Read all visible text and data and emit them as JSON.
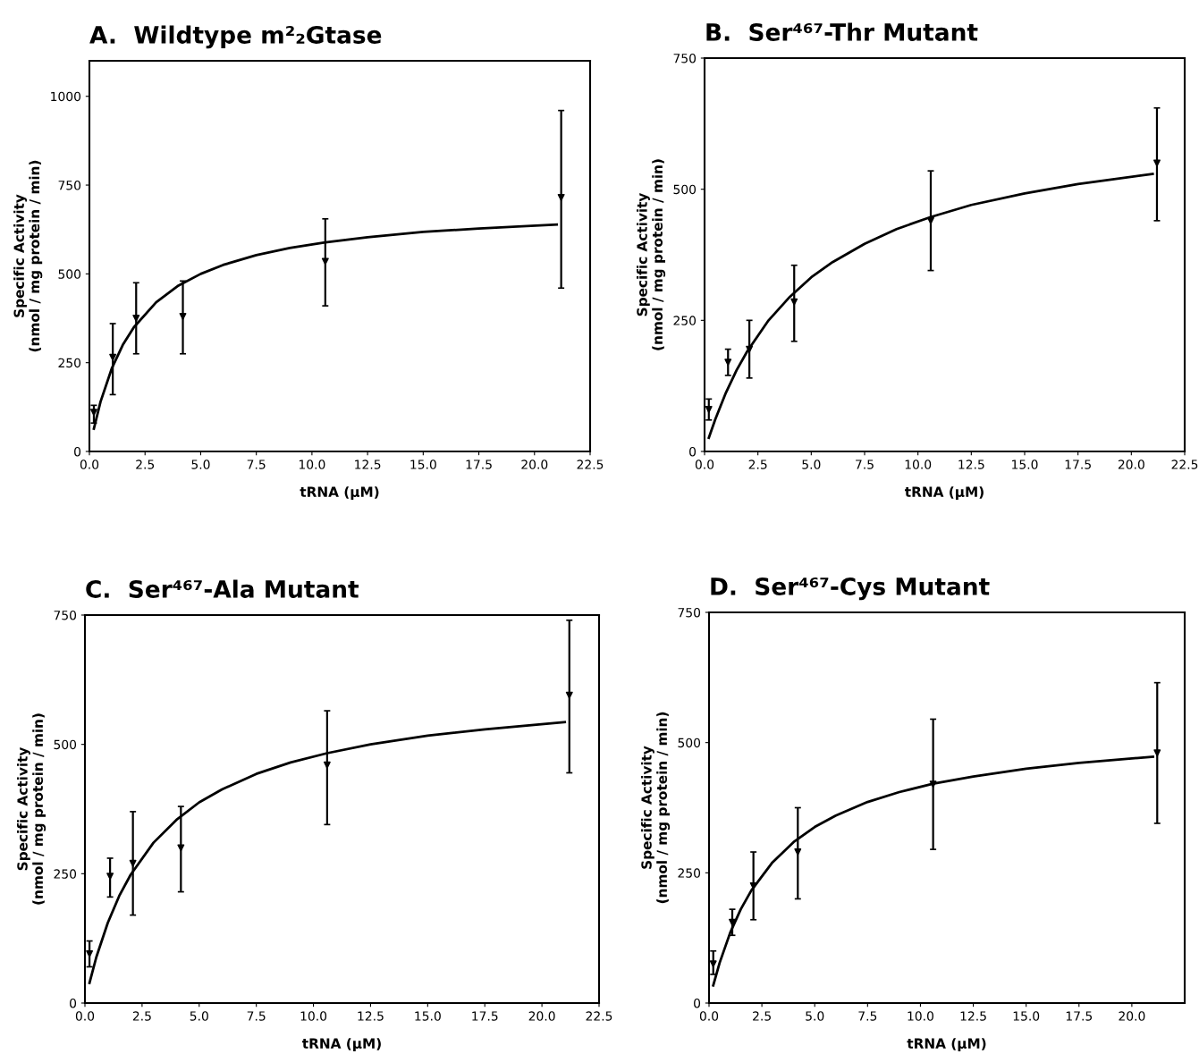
{
  "chart_data": [
    {
      "type": "scatter",
      "title": "A.  Wildtype m²₂Gtase",
      "xlabel": "tRNA (μM)",
      "ylabel": "Specific Activity\n(nmol / mg protein / min)",
      "xlim": [
        0,
        22.5
      ],
      "ylim": [
        0,
        1100
      ],
      "xticks": [
        {
          "value": 0,
          "label": "0.0"
        },
        2.5,
        {
          "value": 5,
          "label": "5.0"
        },
        7.5,
        {
          "value": 10,
          "label": "10.0"
        },
        12.5,
        {
          "value": 15,
          "label": "15.0"
        },
        17.5,
        {
          "value": 20,
          "label": "20.0"
        },
        22.5
      ],
      "yticks": [
        0,
        250,
        500,
        750,
        1000
      ],
      "grid": false,
      "legend": false,
      "series": [
        {
          "color": "#000000",
          "marker": "triangle",
          "x": [
            0.2,
            1.05,
            2.1,
            4.2,
            10.6,
            21.2
          ],
          "values": [
            110,
            265,
            375,
            380,
            535,
            715
          ],
          "errors": [
            [
              80,
              130
            ],
            [
              160,
              360
            ],
            [
              275,
              475
            ],
            [
              275,
              480
            ],
            [
              410,
              655
            ],
            [
              460,
              960
            ]
          ]
        },
        {
          "type": "line",
          "color": "#000000",
          "marker": "none",
          "line_style": "solid",
          "x": [
            0.2,
            0.5,
            1,
            1.5,
            2,
            3,
            4,
            5,
            6,
            7.5,
            9,
            10.6,
            12.5,
            15,
            17.5,
            21
          ],
          "values": [
            64,
            140,
            233,
            300,
            350,
            420,
            467,
            500,
            525,
            553,
            573,
            589,
            603,
            618,
            628,
            639
          ]
        }
      ]
    },
    {
      "type": "scatter",
      "title": "B.  Ser⁴⁶⁷-Thr Mutant",
      "xlabel": "tRNA (μM)",
      "ylabel": "Specific Activity\n(nmol / mg protein / min)",
      "xlim": [
        0,
        22.5
      ],
      "ylim": [
        0,
        750
      ],
      "xticks": [
        {
          "value": 0,
          "label": "0.0"
        },
        2.5,
        {
          "value": 5,
          "label": "5.0"
        },
        7.5,
        {
          "value": 10,
          "label": "10.0"
        },
        12.5,
        {
          "value": 15,
          "label": "15.0"
        },
        17.5,
        {
          "value": 20,
          "label": "20.0"
        },
        22.5
      ],
      "yticks": [
        0,
        250,
        500,
        750
      ],
      "grid": false,
      "legend": false,
      "series": [
        {
          "color": "#000000",
          "marker": "triangle",
          "x": [
            0.2,
            1.1,
            2.1,
            4.2,
            10.6,
            21.2
          ],
          "values": [
            80,
            170,
            195,
            285,
            440,
            550
          ],
          "errors": [
            [
              60,
              100
            ],
            [
              145,
              195
            ],
            [
              140,
              250
            ],
            [
              210,
              355
            ],
            [
              345,
              535
            ],
            [
              440,
              655
            ]
          ]
        },
        {
          "type": "line",
          "color": "#000000",
          "marker": "none",
          "line_style": "solid",
          "x": [
            0.2,
            0.5,
            1,
            1.5,
            2,
            3,
            4,
            5,
            6,
            7.5,
            9,
            10.6,
            12.5,
            15,
            17.5,
            21
          ],
          "values": [
            26,
            61,
            112,
            155,
            191,
            250,
            295,
            332,
            361,
            396,
            424,
            447,
            470,
            492,
            510,
            529
          ]
        }
      ]
    },
    {
      "type": "scatter",
      "title": "C.  Ser⁴⁶⁷-Ala Mutant",
      "xlabel": "tRNA (μM)",
      "ylabel": "Specific Activity\n(nmol / mg protein / min)",
      "xlim": [
        0,
        22.5
      ],
      "ylim": [
        0,
        750
      ],
      "xticks": [
        {
          "value": 0,
          "label": "0.0"
        },
        2.5,
        {
          "value": 5,
          "label": "5.0"
        },
        7.5,
        {
          "value": 10,
          "label": "10.0"
        },
        12.5,
        {
          "value": 15,
          "label": "15.0"
        },
        17.5,
        {
          "value": 20,
          "label": "20.0"
        },
        22.5
      ],
      "yticks": [
        0,
        250,
        500,
        750
      ],
      "grid": false,
      "legend": false,
      "series": [
        {
          "color": "#000000",
          "marker": "triangle",
          "x": [
            0.2,
            1.1,
            2.1,
            4.2,
            10.6,
            21.2
          ],
          "values": [
            95,
            245,
            270,
            300,
            460,
            595
          ],
          "errors": [
            [
              70,
              120
            ],
            [
              205,
              280
            ],
            [
              170,
              370
            ],
            [
              215,
              380
            ],
            [
              345,
              565
            ],
            [
              445,
              740
            ]
          ]
        },
        {
          "type": "line",
          "color": "#000000",
          "marker": "none",
          "line_style": "solid",
          "x": [
            0.2,
            0.5,
            1,
            1.5,
            2,
            3,
            4,
            5,
            6,
            7.5,
            9,
            10.6,
            12.5,
            15,
            17.5,
            21
          ],
          "values": [
            39,
            89,
            155,
            207,
            248,
            310,
            354,
            388,
            413,
            443,
            465,
            483,
            500,
            517,
            529,
            543
          ]
        }
      ]
    },
    {
      "type": "scatter",
      "title": "D.  Ser⁴⁶⁷-Cys Mutant",
      "xlabel": "tRNA (μM)",
      "ylabel": "Specific Activity\n(nmol / mg protein / min)",
      "xlim": [
        0,
        22.5
      ],
      "ylim": [
        0,
        750
      ],
      "xticks": [
        {
          "value": 0,
          "label": "0.0"
        },
        2.5,
        {
          "value": 5,
          "label": "5.0"
        },
        7.5,
        {
          "value": 10,
          "label": "10.0"
        },
        12.5,
        {
          "value": 15,
          "label": "15.0"
        },
        17.5,
        {
          "value": 20,
          "label": "20.0"
        }
      ],
      "yticks": [
        0,
        250,
        500,
        750
      ],
      "grid": false,
      "legend": false,
      "series": [
        {
          "color": "#000000",
          "marker": "triangle",
          "x": [
            0.2,
            1.1,
            2.1,
            4.2,
            10.6,
            21.2
          ],
          "values": [
            75,
            155,
            225,
            290,
            420,
            480
          ],
          "errors": [
            [
              55,
              100
            ],
            [
              130,
              180
            ],
            [
              160,
              290
            ],
            [
              200,
              375
            ],
            [
              295,
              545
            ],
            [
              345,
              615
            ]
          ]
        },
        {
          "type": "line",
          "color": "#000000",
          "marker": "none",
          "line_style": "solid",
          "x": [
            0.2,
            0.5,
            1,
            1.5,
            2,
            3,
            4,
            5,
            6,
            7.5,
            9,
            10.6,
            12.5,
            15,
            17.5,
            21
          ],
          "values": [
            34,
            77,
            135,
            180,
            216,
            270,
            309,
            338,
            360,
            386,
            405,
            421,
            435,
            450,
            461,
            473
          ]
        }
      ]
    }
  ]
}
